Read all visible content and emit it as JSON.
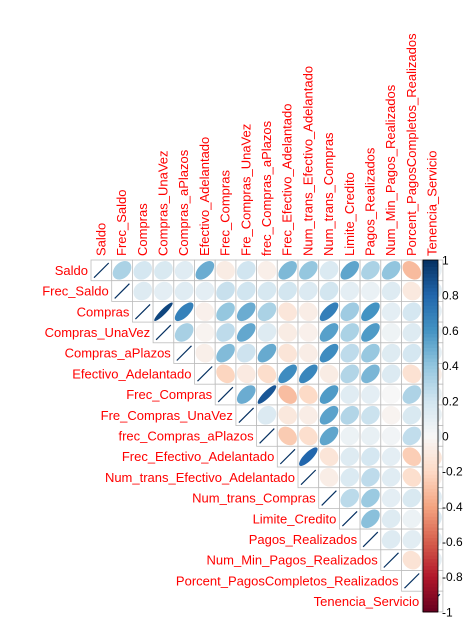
{
  "chart_data": {
    "type": "heatmap",
    "subtype": "upper-triangle correlation matrix, ellipse glyphs",
    "variables": [
      "Saldo",
      "Frec_Saldo",
      "Compras",
      "Compras_UnaVez",
      "Compras_aPlazos",
      "Efectivo_Adelantado",
      "Frec_Compras",
      "Fre_Compras_UnaVez",
      "frec_Compras_aPlazos",
      "Frec_Efectivo_Adelantado",
      "Num_trans_Efectivo_Adelantado",
      "Num_trans_Compras",
      "Limite_Credito",
      "Pagos_Realizados",
      "Num_Min_Pagos_Realizados",
      "Porcent_PagosCompletos_Realizados",
      "Tenencia_Servicio"
    ],
    "matrix_upper": [
      [
        1,
        0.32,
        0.18,
        0.16,
        0.12,
        0.5,
        -0.08,
        0.2,
        -0.06,
        0.45,
        0.39,
        0.15,
        0.53,
        0.32,
        0.4,
        -0.32,
        0.07
      ],
      [
        null,
        1,
        0.13,
        0.1,
        0.12,
        0.1,
        0.23,
        0.2,
        0.17,
        0.19,
        0.14,
        0.19,
        0.1,
        0.07,
        0.13,
        -0.1,
        0.12
      ],
      [
        null,
        null,
        1,
        0.92,
        0.68,
        -0.05,
        0.39,
        0.5,
        0.32,
        -0.12,
        -0.07,
        0.69,
        0.36,
        0.6,
        0.1,
        0.18,
        0.09
      ],
      [
        null,
        null,
        null,
        1,
        0.33,
        -0.03,
        0.26,
        0.52,
        0.13,
        -0.08,
        -0.05,
        0.55,
        0.32,
        0.57,
        0.05,
        0.13,
        0.06
      ],
      [
        null,
        null,
        null,
        null,
        1,
        -0.06,
        0.44,
        0.21,
        0.51,
        -0.13,
        -0.07,
        0.63,
        0.26,
        0.38,
        0.13,
        0.18,
        0.09
      ],
      [
        null,
        null,
        null,
        null,
        null,
        1,
        -0.22,
        -0.09,
        -0.18,
        0.63,
        0.66,
        -0.08,
        0.3,
        0.46,
        0.14,
        -0.15,
        -0.07
      ],
      [
        null,
        null,
        null,
        null,
        null,
        null,
        1,
        0.5,
        0.86,
        -0.31,
        -0.2,
        0.57,
        0.12,
        0.1,
        0.0,
        0.31,
        0.06
      ],
      [
        null,
        null,
        null,
        null,
        null,
        null,
        null,
        1,
        0.14,
        -0.11,
        -0.07,
        0.54,
        0.3,
        0.22,
        -0.03,
        0.16,
        0.08
      ],
      [
        null,
        null,
        null,
        null,
        null,
        null,
        null,
        null,
        1,
        -0.26,
        -0.17,
        0.53,
        0.06,
        0.08,
        0.03,
        0.25,
        0.07
      ],
      [
        null,
        null,
        null,
        null,
        null,
        null,
        null,
        null,
        null,
        1,
        0.8,
        -0.13,
        0.13,
        0.18,
        0.1,
        -0.25,
        -0.13
      ],
      [
        null,
        null,
        null,
        null,
        null,
        null,
        null,
        null,
        null,
        null,
        1,
        -0.07,
        0.15,
        0.26,
        0.12,
        -0.17,
        -0.04
      ],
      [
        null,
        null,
        null,
        null,
        null,
        null,
        null,
        null,
        null,
        null,
        null,
        1,
        0.27,
        0.37,
        0.1,
        0.16,
        0.12
      ],
      [
        null,
        null,
        null,
        null,
        null,
        null,
        null,
        null,
        null,
        null,
        null,
        null,
        1,
        0.42,
        0.13,
        0.06,
        0.14
      ],
      [
        null,
        null,
        null,
        null,
        null,
        null,
        null,
        null,
        null,
        null,
        null,
        null,
        null,
        1,
        0.13,
        0.11,
        0.09
      ],
      [
        null,
        null,
        null,
        null,
        null,
        null,
        null,
        null,
        null,
        null,
        null,
        null,
        null,
        null,
        1,
        -0.14,
        0.09
      ],
      [
        null,
        null,
        null,
        null,
        null,
        null,
        null,
        null,
        null,
        null,
        null,
        null,
        null,
        null,
        null,
        1,
        -0.02
      ],
      [
        null,
        null,
        null,
        null,
        null,
        null,
        null,
        null,
        null,
        null,
        null,
        null,
        null,
        null,
        null,
        null,
        1
      ]
    ],
    "colorbar": {
      "range": [
        -1,
        1
      ],
      "tick_labels": [
        "-1",
        "-0.8",
        "-0.6",
        "-0.4",
        "-0.2",
        "0",
        "0.2",
        "0.4",
        "0.6",
        "0.8",
        "1"
      ],
      "low_color": "#67001f",
      "mid_color": "#f7f7f7",
      "high_color": "#053061"
    },
    "label_color": "#ff0000",
    "grid": true
  }
}
